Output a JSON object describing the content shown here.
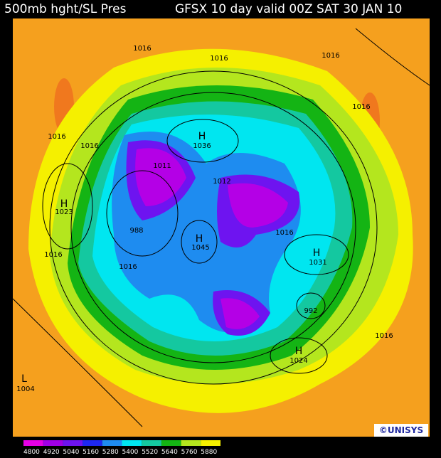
{
  "header": {
    "left": "500mb hght/SL Pres",
    "right": "GFSX 10 day valid 00Z SAT 30 JAN 10"
  },
  "pressure_labels": [
    "1016",
    "1016",
    "1016",
    "1016",
    "1016",
    "1016",
    "H",
    "1036",
    "1011",
    "1012",
    "H",
    "1023",
    "988",
    "H",
    "1045",
    "1016",
    "H",
    "1031",
    "1016",
    "1016",
    "992",
    "1016",
    "H",
    "1024",
    "L",
    "1004"
  ],
  "colorbar": {
    "labels": [
      "4800",
      "4920",
      "5040",
      "5160",
      "5280",
      "5400",
      "5520",
      "5640",
      "5760",
      "5880"
    ],
    "colors": [
      "#e600e6",
      "#a000e6",
      "#6e14f0",
      "#1e28f0",
      "#1e8cf0",
      "#00e6f0",
      "#14c8a0",
      "#14b414",
      "#b4e61e",
      "#f5f000"
    ]
  },
  "logo": "©UNISYS"
}
